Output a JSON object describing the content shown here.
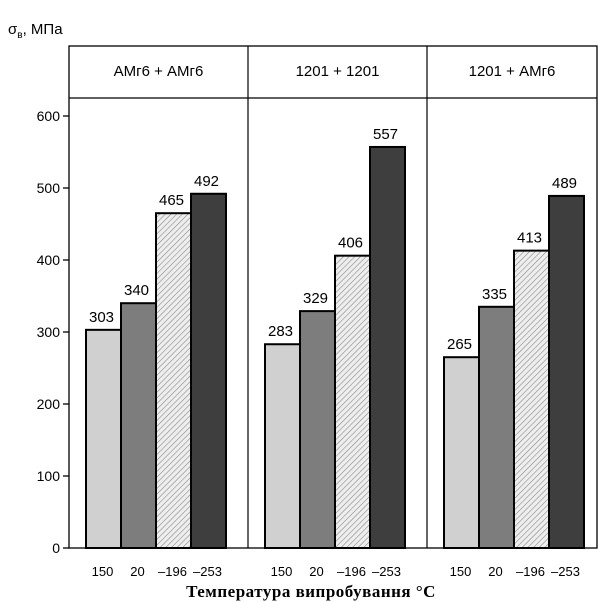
{
  "chart_data": {
    "type": "bar",
    "ylabel": "σв, МПа",
    "xlabel": "Температура випробування °С",
    "ylim": [
      0,
      700
    ],
    "yticks": [
      0,
      100,
      200,
      300,
      400,
      500,
      600
    ],
    "grid": false,
    "categories": [
      "150",
      "20",
      "–196",
      "–253"
    ],
    "series_colors": [
      "#d0d0d0",
      "#7d7d7d",
      "#e6e6e6",
      "#3e3e3e"
    ],
    "series_hatched": [
      false,
      false,
      true,
      false
    ],
    "groups": [
      {
        "name": "АМг6 + АМг6",
        "values": [
          303,
          340,
          465,
          492
        ]
      },
      {
        "name": "1201 + 1201",
        "values": [
          283,
          329,
          406,
          557
        ]
      },
      {
        "name": "1201 + АМг6",
        "values": [
          265,
          335,
          413,
          489
        ]
      }
    ]
  }
}
